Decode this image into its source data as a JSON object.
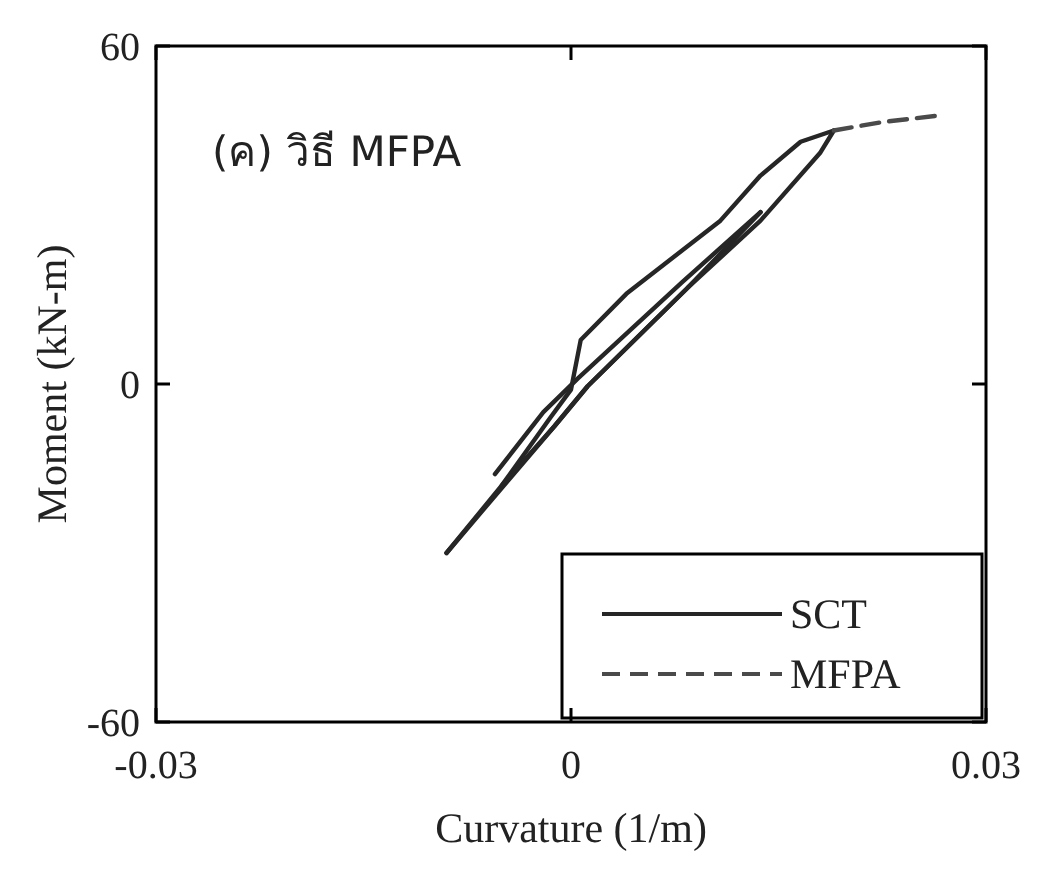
{
  "chart_data": {
    "type": "line",
    "xlabel": "Curvature (1/m)",
    "ylabel": "Moment (kN-m)",
    "annotations": [
      "(ค) วิธี MFPA"
    ],
    "xlim": [
      -0.03,
      0.03
    ],
    "ylim": [
      -60,
      60
    ],
    "xticks": [
      -0.03,
      0,
      0.03
    ],
    "yticks": [
      -60,
      0,
      60
    ],
    "grid": false,
    "legend": "bottom right",
    "marker": "none",
    "series": [
      {
        "name": "SCT",
        "color": "#262626",
        "line_style": "solid",
        "x": [
          -0.009,
          -0.0045,
          -0.0012,
          0.0012,
          0.0084,
          0.0137
        ],
        "values": [
          -30,
          -17,
          -7.5,
          -0.4,
          17,
          30.5
        ]
      },
      {
        "color": "#262626",
        "line_style": "solid",
        "x": [
          0.0137,
          0.008,
          0.0005,
          -0.002,
          -0.0055
        ],
        "values": [
          30.5,
          18,
          1,
          -5,
          -16
        ]
      },
      {
        "color": "#262626",
        "line_style": "solid",
        "x": [
          -0.009,
          -0.005,
          -0.0015,
          0.0,
          0.0007,
          0.004,
          0.0108,
          0.0137,
          0.0166,
          0.019
        ],
        "values": [
          -30,
          -18,
          -6,
          -1,
          7.8,
          16,
          29,
          37,
          43,
          45
        ]
      },
      {
        "color": "#262626",
        "line_style": "solid",
        "x": [
          0.019,
          0.018,
          0.0137,
          0.0084,
          0.0012,
          -0.0012,
          -0.005
        ],
        "values": [
          45,
          41,
          29,
          17,
          -0.4,
          -7.5,
          -18
        ]
      },
      {
        "name": "MFPA",
        "color": "#4a4a4a",
        "line_style": "dashed",
        "x": [
          0.019,
          0.0225,
          0.0264
        ],
        "values": [
          45,
          46.5,
          47.6
        ]
      }
    ]
  }
}
